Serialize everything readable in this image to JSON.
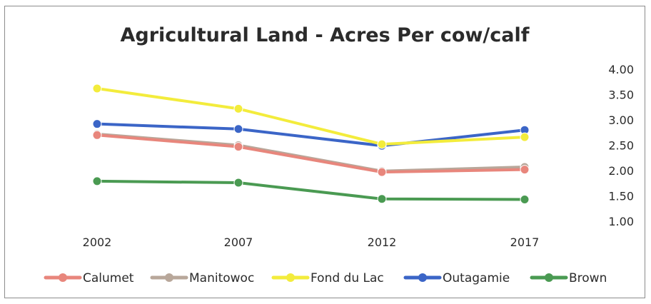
{
  "chart_data": {
    "type": "line",
    "title": "Agricultural Land - Acres Per cow/calf",
    "x": [
      "2002",
      "2007",
      "2012",
      "2017"
    ],
    "ylim": [
      1.0,
      4.0
    ],
    "y_ticks": [
      "4.00",
      "3.50",
      "3.00",
      "2.50",
      "2.00",
      "1.50",
      "1.00"
    ],
    "y_tick_values": [
      4.0,
      3.5,
      3.0,
      2.5,
      2.0,
      1.5,
      1.0
    ],
    "y_axis_side": "right",
    "grid": false,
    "legend_position": "bottom",
    "series": [
      {
        "name": "Calumet",
        "color": "#e8867c",
        "values": [
          2.7,
          2.47,
          1.97,
          2.02
        ]
      },
      {
        "name": "Manitowoc",
        "color": "#b8a79a",
        "values": [
          2.72,
          2.5,
          1.99,
          2.07
        ]
      },
      {
        "name": "Fond du Lac",
        "color": "#f3ec3c",
        "values": [
          3.62,
          3.22,
          2.52,
          2.66
        ]
      },
      {
        "name": "Outagamie",
        "color": "#3b65c7",
        "values": [
          2.92,
          2.82,
          2.49,
          2.8
        ]
      },
      {
        "name": "Brown",
        "color": "#4a9a52",
        "values": [
          1.79,
          1.76,
          1.44,
          1.43
        ]
      }
    ]
  }
}
